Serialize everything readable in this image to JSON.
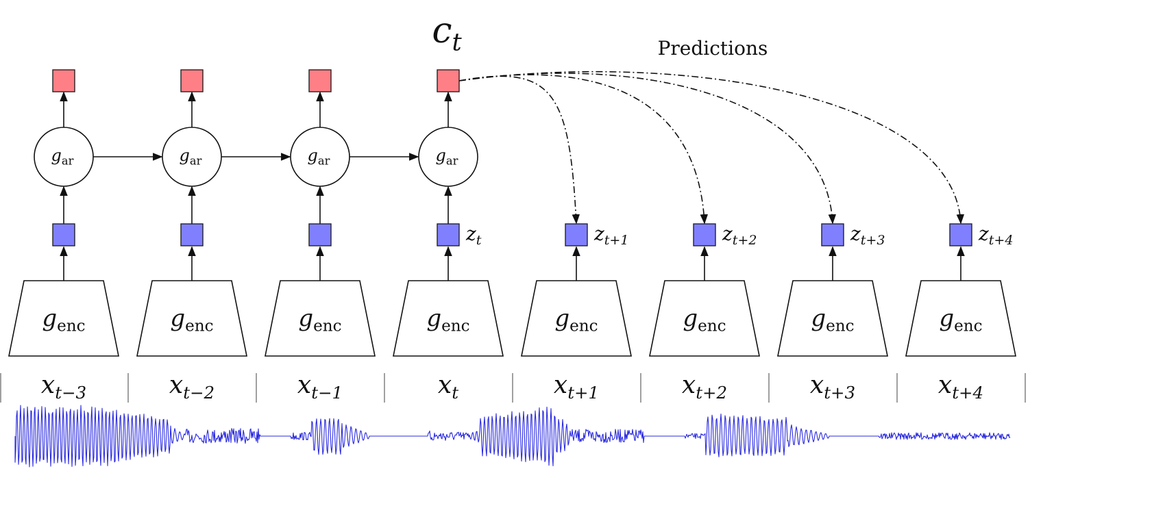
{
  "colors": {
    "context_fill": "#ff7f86",
    "latent_fill": "#8080ff",
    "waveform": "#2a2ae0",
    "stroke": "#111111",
    "separator": "#888888"
  },
  "context_label": {
    "var": "c",
    "sub": "t"
  },
  "predictions_label": "Predictions",
  "ar_label": {
    "var": "g",
    "sub": "ar"
  },
  "enc_label": {
    "var": "g",
    "sub": "enc"
  },
  "columns": [
    {
      "x": {
        "var": "x",
        "sub": "t−3"
      },
      "z": null,
      "has_ar": true,
      "predicted": false
    },
    {
      "x": {
        "var": "x",
        "sub": "t−2"
      },
      "z": null,
      "has_ar": true,
      "predicted": false
    },
    {
      "x": {
        "var": "x",
        "sub": "t−1"
      },
      "z": null,
      "has_ar": true,
      "predicted": false
    },
    {
      "x": {
        "var": "x",
        "sub": "t"
      },
      "z": {
        "var": "z",
        "sub": "t"
      },
      "has_ar": true,
      "predicted": false
    },
    {
      "x": {
        "var": "x",
        "sub": "t+1"
      },
      "z": {
        "var": "z",
        "sub": "t+1"
      },
      "has_ar": false,
      "predicted": true
    },
    {
      "x": {
        "var": "x",
        "sub": "t+2"
      },
      "z": {
        "var": "z",
        "sub": "t+2"
      },
      "has_ar": false,
      "predicted": true
    },
    {
      "x": {
        "var": "x",
        "sub": "t+3"
      },
      "z": {
        "var": "z",
        "sub": "t+3"
      },
      "has_ar": false,
      "predicted": true
    },
    {
      "x": {
        "var": "x",
        "sub": "t+4"
      },
      "z": {
        "var": "z",
        "sub": "t+4"
      },
      "has_ar": false,
      "predicted": true
    }
  ]
}
